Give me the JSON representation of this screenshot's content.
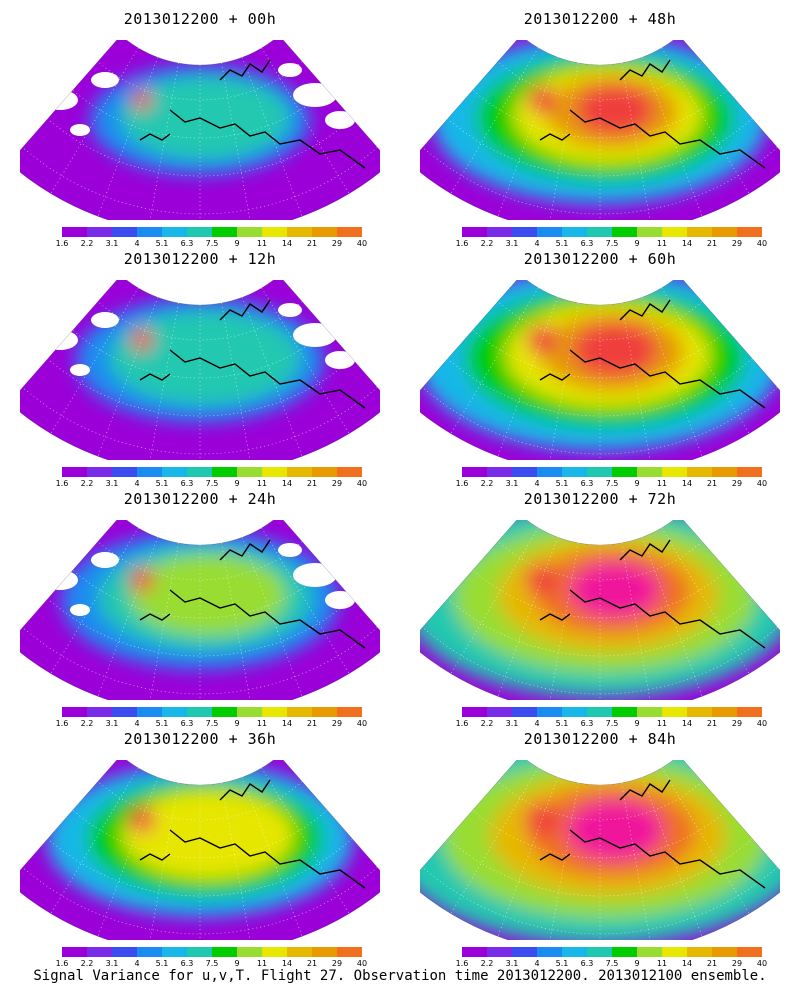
{
  "caption": "Signal Variance for u,v,T. Flight 27. Observation time 2013012200. 2013012100 ensemble.",
  "panels": [
    {
      "title": "2013012200 + 00h",
      "intensity": 0,
      "white_gaps": true
    },
    {
      "title": "2013012200 + 48h",
      "intensity": 4,
      "white_gaps": false
    },
    {
      "title": "2013012200 + 12h",
      "intensity": 1,
      "white_gaps": true
    },
    {
      "title": "2013012200 + 60h",
      "intensity": 5,
      "white_gaps": false
    },
    {
      "title": "2013012200 + 24h",
      "intensity": 2,
      "white_gaps": true
    },
    {
      "title": "2013012200 + 72h",
      "intensity": 6,
      "white_gaps": false
    },
    {
      "title": "2013012200 + 36h",
      "intensity": 3,
      "white_gaps": false
    },
    {
      "title": "2013012200 + 84h",
      "intensity": 7,
      "white_gaps": false
    }
  ],
  "colorbar": {
    "colors": [
      "#9b00d8",
      "#7a2be8",
      "#3b4df0",
      "#1a8cf0",
      "#17b7e8",
      "#20c8b0",
      "#00cc00",
      "#99dd33",
      "#e6e600",
      "#e6b800",
      "#e69900",
      "#f07020",
      "#f03c3c",
      "#f0149b"
    ],
    "tick_labels": [
      "1.6",
      "2.2",
      "3.1",
      "4",
      "5.1",
      "6.3",
      "7.5",
      "9",
      "11",
      "14",
      "21",
      "29",
      "40"
    ]
  },
  "legend": {
    "colors": {
      "background_domain": "#9b00d8",
      "coast": "#000000",
      "grid": "#ffffff",
      "no_data": "#ffffff"
    }
  }
}
